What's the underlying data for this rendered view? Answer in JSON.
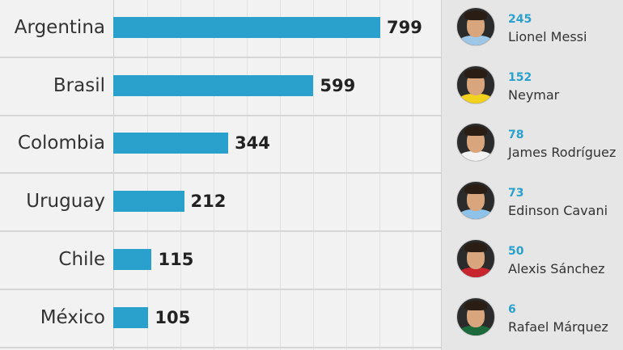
{
  "chart_data": {
    "type": "bar",
    "orientation": "horizontal",
    "categories": [
      "Argentina",
      "Brasil",
      "Colombia",
      "Uruguay",
      "Chile",
      "México"
    ],
    "values": [
      799,
      599,
      344,
      212,
      115,
      105
    ],
    "xlim": [
      0,
      1000
    ],
    "grid": true
  },
  "players": [
    {
      "goals": "245",
      "name": "Lionel Messi",
      "shirt": "#9ec6e6"
    },
    {
      "goals": "152",
      "name": "Neymar",
      "shirt": "#f2d21e"
    },
    {
      "goals": "78",
      "name": "James Rodríguez",
      "shirt": "#f2f2f2"
    },
    {
      "goals": "73",
      "name": "Edinson Cavani",
      "shirt": "#8fc2e8"
    },
    {
      "goals": "50",
      "name": "Alexis Sánchez",
      "shirt": "#c8262f"
    },
    {
      "goals": "6",
      "name": "Rafael Márquez",
      "shirt": "#1c6a3c"
    }
  ],
  "colors": {
    "bar": "#2aa1cc",
    "goals": "#2aa1cc"
  }
}
